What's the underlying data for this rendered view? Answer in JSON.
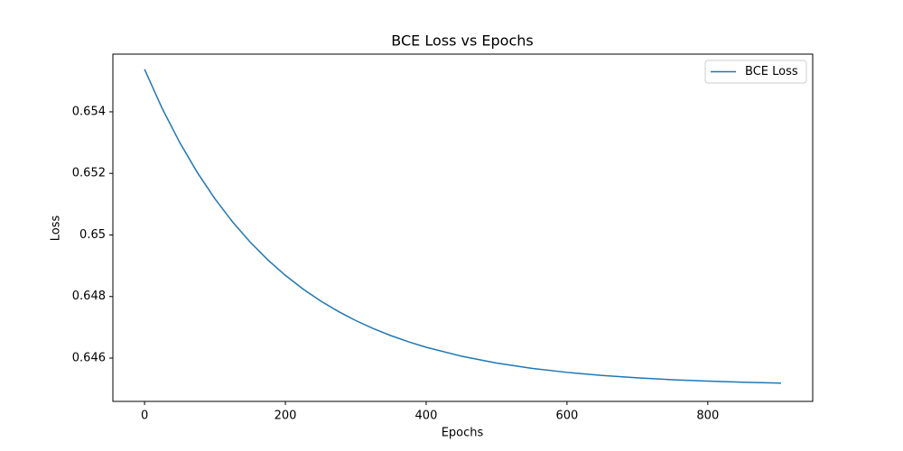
{
  "chart_data": {
    "type": "line",
    "title": "BCE Loss vs Epochs",
    "x_label": "Epochs",
    "y_label": "Loss",
    "x": [
      0,
      25,
      50,
      75,
      100,
      125,
      150,
      175,
      200,
      225,
      250,
      275,
      300,
      325,
      350,
      375,
      400,
      450,
      500,
      550,
      600,
      650,
      700,
      750,
      800,
      850,
      904
    ],
    "series": [
      {
        "name": "BCE Loss",
        "color": "#1f77b4",
        "values": [
          0.65538,
          0.654112,
          0.653001,
          0.652027,
          0.651173,
          0.650424,
          0.649768,
          0.649192,
          0.648688,
          0.648246,
          0.647858,
          0.647518,
          0.64722,
          0.646959,
          0.646729,
          0.646529,
          0.646352,
          0.646063,
          0.645839,
          0.645668,
          0.645537,
          0.645436,
          0.645358,
          0.645298,
          0.645252,
          0.645217,
          0.645189
        ]
      }
    ],
    "xlim": [
      -45,
      949
    ],
    "xticks": [
      0,
      200,
      400,
      600,
      800
    ],
    "ylim": [
      0.644594,
      0.655874
    ],
    "yticks": [
      0.646,
      0.648,
      0.65,
      0.652,
      0.654
    ],
    "grid": false,
    "legend": "upper-right"
  }
}
